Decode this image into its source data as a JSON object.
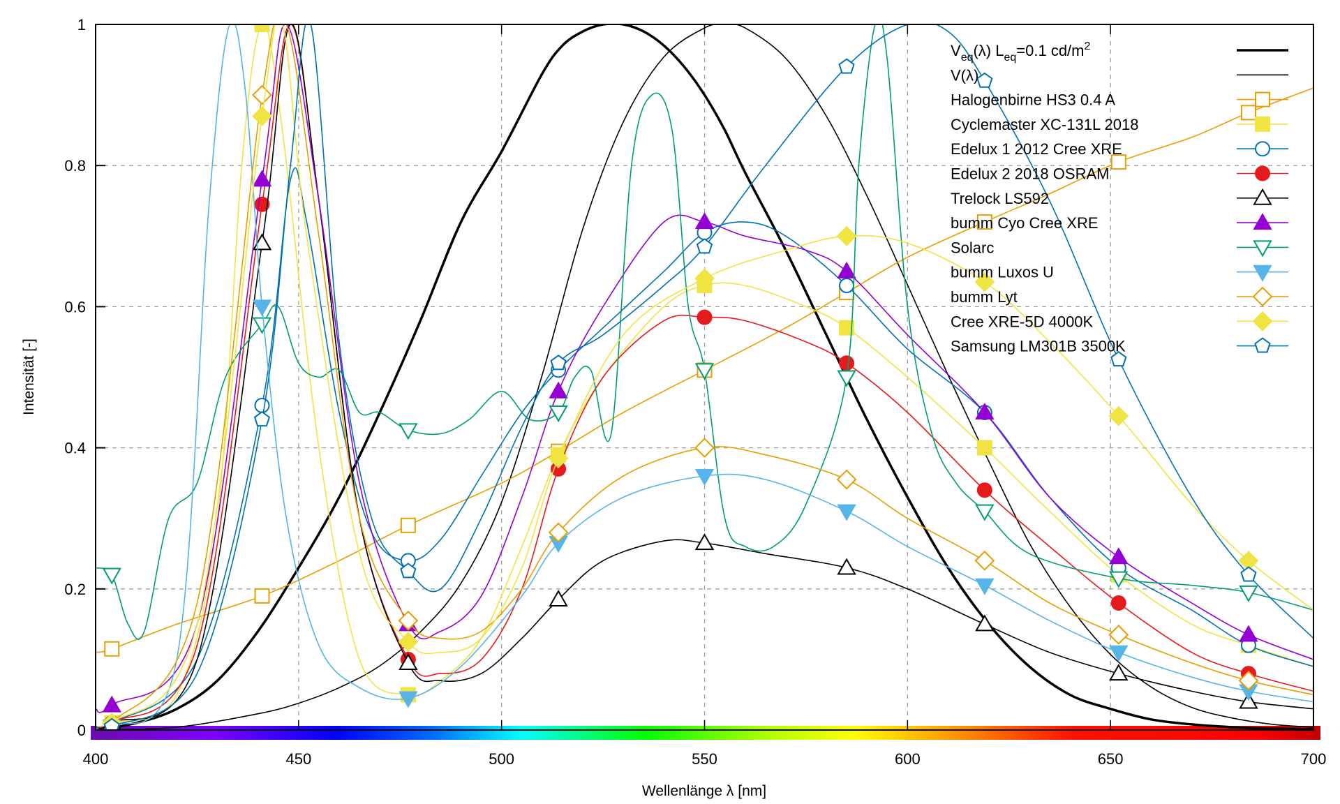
{
  "chart_data": {
    "type": "line",
    "title": "",
    "xlabel": "Wellenlänge λ [nm]",
    "ylabel": "Intensität [-]",
    "xlim": [
      400,
      700
    ],
    "ylim": [
      0,
      1
    ],
    "x_ticks": [
      400,
      450,
      500,
      550,
      600,
      650,
      700
    ],
    "y_ticks": [
      0,
      0.2,
      0.4,
      0.6,
      0.8,
      1
    ],
    "y_tick_labels": [
      "0",
      "0.2",
      "0.4",
      "0.6",
      "0.8",
      "1"
    ],
    "grid": true,
    "legend_position": "top-right",
    "spectrum_bar": true,
    "marker_x": [
      404,
      441,
      477,
      514,
      550,
      585,
      619,
      652,
      684
    ],
    "series": [
      {
        "name": "V_eq(λ) L_eq=0.1 cd/m²",
        "label_parts": [
          "V",
          "eq",
          "(λ) L",
          "eq",
          "=0.1 cd/m",
          "2"
        ],
        "color": "#000000",
        "width": 3.5,
        "marker": "none",
        "x": [
          400,
          410,
          420,
          430,
          440,
          450,
          460,
          470,
          480,
          490,
          500,
          510,
          515,
          520,
          525,
          530,
          535,
          540,
          545,
          550,
          555,
          560,
          570,
          580,
          590,
          600,
          610,
          620,
          630,
          640,
          650,
          660,
          670,
          680,
          690,
          700
        ],
        "y": [
          0.0,
          0.01,
          0.03,
          0.07,
          0.14,
          0.23,
          0.33,
          0.45,
          0.58,
          0.72,
          0.82,
          0.93,
          0.97,
          0.99,
          1.0,
          1.0,
          0.99,
          0.97,
          0.94,
          0.9,
          0.85,
          0.79,
          0.68,
          0.56,
          0.44,
          0.33,
          0.23,
          0.15,
          0.09,
          0.05,
          0.03,
          0.015,
          0.008,
          0.004,
          0.002,
          0.001
        ]
      },
      {
        "name": "V(λ)",
        "label_parts": [
          "V(λ)"
        ],
        "color": "#000000",
        "width": 1.6,
        "marker": "none",
        "x": [
          400,
          420,
          440,
          450,
          460,
          470,
          480,
          490,
          500,
          510,
          520,
          530,
          540,
          550,
          555,
          560,
          570,
          580,
          590,
          600,
          610,
          620,
          630,
          640,
          650,
          660,
          670,
          680,
          690,
          700
        ],
        "y": [
          0.0,
          0.004,
          0.023,
          0.038,
          0.06,
          0.091,
          0.139,
          0.208,
          0.323,
          0.503,
          0.71,
          0.862,
          0.954,
          0.995,
          1.0,
          0.995,
          0.952,
          0.87,
          0.757,
          0.631,
          0.503,
          0.381,
          0.265,
          0.175,
          0.107,
          0.061,
          0.032,
          0.017,
          0.008,
          0.004
        ]
      },
      {
        "name": "Halogenbirne HS3 0.4 A",
        "color": "#e69f00",
        "width": 1.6,
        "marker": "square-open",
        "x": [
          400,
          404,
          420,
          441,
          460,
          477,
          500,
          514,
          530,
          550,
          570,
          585,
          600,
          619,
          635,
          652,
          670,
          684,
          700
        ],
        "y": [
          0.11,
          0.115,
          0.15,
          0.19,
          0.24,
          0.29,
          0.35,
          0.395,
          0.45,
          0.51,
          0.57,
          0.62,
          0.67,
          0.72,
          0.76,
          0.805,
          0.84,
          0.875,
          0.91
        ]
      },
      {
        "name": "Cyclemaster XC-131L 2018",
        "color": "#f0e442",
        "width": 1.6,
        "marker": "square-filled",
        "x": [
          400,
          404,
          420,
          430,
          436,
          441,
          446,
          455,
          465,
          477,
          485,
          495,
          505,
          514,
          525,
          540,
          550,
          560,
          575,
          585,
          600,
          619,
          635,
          652,
          670,
          684,
          700
        ],
        "y": [
          0.005,
          0.01,
          0.05,
          0.3,
          0.8,
          1.0,
          0.85,
          0.4,
          0.1,
          0.05,
          0.07,
          0.13,
          0.26,
          0.39,
          0.5,
          0.6,
          0.63,
          0.63,
          0.6,
          0.57,
          0.5,
          0.4,
          0.31,
          0.22,
          0.15,
          0.12,
          0.09
        ]
      },
      {
        "name": "Edelux 1 2012 Cree XRE",
        "color": "#0072b2",
        "width": 1.6,
        "marker": "circle-open",
        "x": [
          400,
          404,
          425,
          441,
          448,
          452,
          460,
          468,
          477,
          485,
          495,
          505,
          514,
          525,
          540,
          550,
          560,
          570,
          585,
          600,
          619,
          635,
          652,
          670,
          684,
          700
        ],
        "y": [
          0.005,
          0.01,
          0.1,
          0.46,
          0.78,
          0.72,
          0.45,
          0.28,
          0.24,
          0.27,
          0.36,
          0.45,
          0.51,
          0.57,
          0.65,
          0.705,
          0.72,
          0.7,
          0.63,
          0.54,
          0.45,
          0.33,
          0.23,
          0.17,
          0.12,
          0.09
        ]
      },
      {
        "name": "Edelux 2 2018 OSRAM",
        "color": "#e41a1c",
        "width": 1.6,
        "marker": "circle-filled",
        "x": [
          400,
          404,
          425,
          441,
          448,
          455,
          465,
          477,
          485,
          495,
          505,
          514,
          525,
          540,
          550,
          560,
          575,
          585,
          600,
          619,
          635,
          652,
          670,
          684,
          700
        ],
        "y": [
          0.005,
          0.01,
          0.12,
          0.745,
          1.0,
          0.75,
          0.3,
          0.1,
          0.08,
          0.1,
          0.2,
          0.37,
          0.5,
          0.58,
          0.585,
          0.58,
          0.55,
          0.52,
          0.45,
          0.34,
          0.26,
          0.18,
          0.11,
          0.08,
          0.055
        ]
      },
      {
        "name": "Trelock LS592",
        "color": "#000000",
        "width": 1.6,
        "marker": "triangle-open",
        "x": [
          400,
          404,
          425,
          441,
          448,
          455,
          465,
          477,
          485,
          495,
          505,
          514,
          525,
          540,
          550,
          565,
          585,
          600,
          619,
          635,
          652,
          670,
          684,
          700
        ],
        "y": [
          0.005,
          0.01,
          0.1,
          0.69,
          1.0,
          0.75,
          0.3,
          0.095,
          0.07,
          0.08,
          0.13,
          0.185,
          0.24,
          0.268,
          0.265,
          0.25,
          0.23,
          0.2,
          0.15,
          0.11,
          0.08,
          0.055,
          0.04,
          0.03
        ]
      },
      {
        "name": "bumm Cyo Cree XRE",
        "color": "#9400d3",
        "width": 1.6,
        "marker": "triangle-filled",
        "x": [
          400,
          404,
          425,
          441,
          447,
          455,
          465,
          477,
          485,
          495,
          505,
          514,
          525,
          540,
          550,
          560,
          575,
          585,
          600,
          619,
          635,
          652,
          670,
          684,
          700
        ],
        "y": [
          0.03,
          0.035,
          0.15,
          0.78,
          1.0,
          0.75,
          0.35,
          0.15,
          0.14,
          0.19,
          0.33,
          0.48,
          0.6,
          0.72,
          0.72,
          0.7,
          0.68,
          0.65,
          0.56,
          0.45,
          0.33,
          0.245,
          0.18,
          0.135,
          0.1
        ]
      },
      {
        "name": "Solarc",
        "color": "#009e73",
        "width": 1.6,
        "marker": "triangle-down-open",
        "x": [
          400,
          404,
          408,
          412,
          418,
          425,
          432,
          441,
          445,
          450,
          455,
          460,
          465,
          470,
          477,
          485,
          492,
          500,
          507,
          514,
          518,
          522,
          527,
          532,
          537,
          542,
          546,
          550,
          555,
          560,
          567,
          575,
          585,
          588,
          592,
          595,
          600,
          606,
          612,
          619,
          630,
          652,
          670,
          684,
          700
        ],
        "y": [
          0.23,
          0.22,
          0.15,
          0.14,
          0.3,
          0.35,
          0.5,
          0.575,
          0.6,
          0.52,
          0.5,
          0.51,
          0.45,
          0.45,
          0.425,
          0.42,
          0.44,
          0.48,
          0.44,
          0.45,
          0.5,
          0.51,
          0.42,
          0.8,
          0.9,
          0.85,
          0.6,
          0.51,
          0.3,
          0.26,
          0.26,
          0.32,
          0.5,
          0.8,
          1.0,
          0.95,
          0.6,
          0.42,
          0.35,
          0.31,
          0.25,
          0.215,
          0.205,
          0.195,
          0.17
        ]
      },
      {
        "name": "bumm Luxos U",
        "color": "#56b4e9",
        "width": 1.6,
        "marker": "triangle-down-filled",
        "x": [
          400,
          404,
          420,
          428,
          433,
          437,
          441,
          447,
          455,
          465,
          477,
          490,
          505,
          514,
          530,
          550,
          565,
          585,
          600,
          619,
          635,
          652,
          670,
          684,
          700
        ],
        "y": [
          0.005,
          0.005,
          0.1,
          0.75,
          1.0,
          0.9,
          0.6,
          0.3,
          0.12,
          0.06,
          0.045,
          0.09,
          0.19,
          0.265,
          0.33,
          0.36,
          0.355,
          0.31,
          0.26,
          0.205,
          0.155,
          0.11,
          0.075,
          0.055,
          0.04
        ]
      },
      {
        "name": "bumm Lyt",
        "color": "#e69f00",
        "width": 1.6,
        "marker": "diamond-open",
        "x": [
          400,
          404,
          425,
          441,
          447,
          455,
          465,
          477,
          485,
          495,
          505,
          514,
          530,
          550,
          565,
          585,
          600,
          619,
          635,
          652,
          670,
          684,
          700
        ],
        "y": [
          0.005,
          0.01,
          0.18,
          0.9,
          1.0,
          0.7,
          0.3,
          0.155,
          0.13,
          0.14,
          0.2,
          0.28,
          0.36,
          0.4,
          0.39,
          0.355,
          0.3,
          0.24,
          0.18,
          0.135,
          0.095,
          0.07,
          0.05
        ]
      },
      {
        "name": "Cree XRE-5D 4000K",
        "color": "#f0e442",
        "width": 1.6,
        "marker": "diamond-filled",
        "x": [
          400,
          404,
          425,
          441,
          446,
          452,
          465,
          477,
          485,
          495,
          505,
          514,
          530,
          550,
          570,
          585,
          600,
          619,
          635,
          652,
          670,
          684,
          700
        ],
        "y": [
          0.005,
          0.01,
          0.15,
          0.87,
          1.0,
          0.7,
          0.25,
          0.125,
          0.11,
          0.13,
          0.23,
          0.385,
          0.56,
          0.64,
          0.68,
          0.7,
          0.69,
          0.635,
          0.55,
          0.445,
          0.32,
          0.24,
          0.17
        ]
      },
      {
        "name": "Samsung LM301B 3500K",
        "color": "#0072b2",
        "width": 1.6,
        "marker": "pentagon-open",
        "x": [
          400,
          404,
          425,
          441,
          448,
          453,
          460,
          468,
          477,
          485,
          495,
          505,
          514,
          525,
          540,
          550,
          565,
          585,
          600,
          610,
          619,
          635,
          652,
          670,
          684,
          700
        ],
        "y": [
          0.005,
          0.005,
          0.08,
          0.44,
          0.8,
          1.0,
          0.55,
          0.3,
          0.225,
          0.2,
          0.3,
          0.43,
          0.52,
          0.56,
          0.63,
          0.685,
          0.8,
          0.94,
          1.0,
          0.99,
          0.92,
          0.75,
          0.525,
          0.33,
          0.22,
          0.13
        ]
      }
    ]
  }
}
